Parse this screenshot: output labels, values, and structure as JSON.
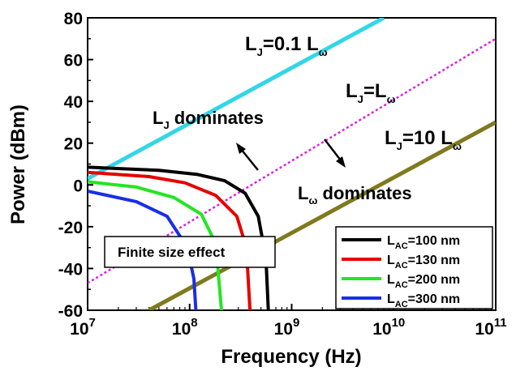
{
  "chart_data": {
    "type": "line",
    "xlabel": "Frequency (Hz)",
    "ylabel": "Power (dBm)",
    "xscale": "log",
    "xlim": [
      10000000,
      100000000000
    ],
    "ylim": [
      -60,
      80
    ],
    "x_ticks": [
      {
        "value": 10000000,
        "base": "10",
        "exp": "7"
      },
      {
        "value": 100000000,
        "base": "10",
        "exp": "8"
      },
      {
        "value": 1000000000,
        "base": "10",
        "exp": "9"
      },
      {
        "value": 10000000000,
        "base": "10",
        "exp": "10"
      },
      {
        "value": 100000000000,
        "base": "10",
        "exp": "11"
      }
    ],
    "y_ticks": [
      "80",
      "60",
      "40",
      "20",
      "0",
      "-20",
      "-40",
      "-60"
    ],
    "lines": [
      {
        "label_main": "L",
        "label_sub": "J",
        "label_rest": "=0.1 L",
        "label_sub2": "ω",
        "color": "#33d6e6",
        "style": "solid",
        "points": [
          [
            10000000,
            3
          ],
          [
            8000000000,
            80
          ]
        ]
      },
      {
        "label_main": "L",
        "label_sub": "J",
        "label_rest": "=L",
        "label_sub2": "ω",
        "color": "#e01ee0",
        "style": "dotted",
        "points": [
          [
            10000000,
            -47
          ],
          [
            100000000000,
            70
          ]
        ]
      },
      {
        "label_main": "L",
        "label_sub": "J",
        "label_rest": "=10 L",
        "label_sub2": "ω",
        "color": "#7f7a1e",
        "style": "solid",
        "points": [
          [
            40000000,
            -60
          ],
          [
            100000000000,
            30
          ]
        ]
      }
    ],
    "series": [
      {
        "name_main": "L",
        "name_sub": "AC",
        "name_rest": "=100 nm",
        "color": "#000000",
        "points": [
          [
            10000000,
            8.5
          ],
          [
            50000000,
            7
          ],
          [
            120000000,
            5
          ],
          [
            220000000,
            2
          ],
          [
            350000000,
            -4
          ],
          [
            470000000,
            -15
          ],
          [
            560000000,
            -35
          ],
          [
            590000000,
            -60
          ]
        ]
      },
      {
        "name_main": "L",
        "name_sub": "AC",
        "name_rest": "=130 nm",
        "color": "#e60000",
        "points": [
          [
            10000000,
            6
          ],
          [
            40000000,
            4
          ],
          [
            90000000,
            1
          ],
          [
            180000000,
            -5
          ],
          [
            290000000,
            -15
          ],
          [
            360000000,
            -30
          ],
          [
            390000000,
            -60
          ]
        ]
      },
      {
        "name_main": "L",
        "name_sub": "AC",
        "name_rest": "=200 nm",
        "color": "#22e622",
        "points": [
          [
            10000000,
            1.5
          ],
          [
            30000000,
            -1
          ],
          [
            70000000,
            -6
          ],
          [
            130000000,
            -14
          ],
          [
            180000000,
            -28
          ],
          [
            205000000,
            -60
          ]
        ]
      },
      {
        "name_main": "L",
        "name_sub": "AC",
        "name_rest": "=300 nm",
        "color": "#1a2ee6",
        "points": [
          [
            10000000,
            -3
          ],
          [
            30000000,
            -8
          ],
          [
            60000000,
            -15
          ],
          [
            95000000,
            -30
          ],
          [
            110000000,
            -45
          ],
          [
            115000000,
            -60
          ]
        ]
      }
    ],
    "annotations": {
      "lj_dom_main": "L",
      "lj_dom_sub": "J",
      "lj_dom_rest": " dominates",
      "lw_dom_main": "L",
      "lw_dom_sub": "ω",
      "lw_dom_rest": " dominates",
      "finite_box": "Finite size effect"
    },
    "grid": false,
    "legend_position": "bottom-right"
  }
}
